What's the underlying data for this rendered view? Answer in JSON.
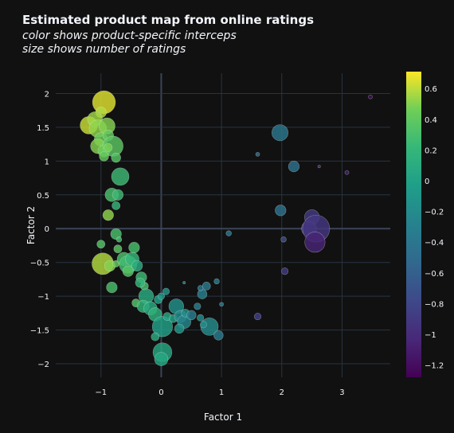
{
  "header": {
    "title": "Estimated product map from online ratings",
    "subtitle_1": "color shows product-specific interceps",
    "subtitle_2": "size shows number of ratings"
  },
  "chart_data": {
    "type": "scatter",
    "title": "Estimated product map from online ratings",
    "subtitle": [
      "color shows product-specific interceps",
      "size shows number of ratings"
    ],
    "xlabel": "Factor 1",
    "ylabel": "Factor 2",
    "xlim": [
      -1.75,
      3.8
    ],
    "ylim": [
      -2.2,
      2.3
    ],
    "xticks": [
      -1,
      0,
      1,
      2,
      3
    ],
    "xtick_labels": [
      "−1",
      "0",
      "1",
      "2",
      "3"
    ],
    "yticks": [
      -2,
      -1.5,
      -1,
      -0.5,
      0,
      0.5,
      1,
      1.5,
      2
    ],
    "ytick_labels": [
      "−2",
      "−1.5",
      "−1",
      "−0.5",
      "0",
      "0.5",
      "1",
      "1.5",
      "2"
    ],
    "grid": true,
    "colorscale": "viridis",
    "colorbar": {
      "range": [
        -1.28,
        0.71
      ],
      "ticks": [
        0.6,
        0.4,
        0.2,
        0,
        -0.2,
        -0.4,
        -0.6,
        -0.8,
        -1,
        -1.2
      ],
      "tick_labels": [
        "0.6",
        "0.4",
        "0.2",
        "0",
        "−0.2",
        "−0.4",
        "−0.6",
        "−0.8",
        "−1",
        "−1.2"
      ]
    },
    "points": [
      {
        "x": -0.95,
        "y": 1.87,
        "c": 0.66,
        "s": 17
      },
      {
        "x": -1.2,
        "y": 1.53,
        "c": 0.62,
        "s": 13
      },
      {
        "x": -1.0,
        "y": 1.72,
        "c": 0.58,
        "s": 8
      },
      {
        "x": -1.1,
        "y": 1.62,
        "c": 0.55,
        "s": 11
      },
      {
        "x": -1.05,
        "y": 1.48,
        "c": 0.52,
        "s": 13
      },
      {
        "x": -0.9,
        "y": 1.52,
        "c": 0.5,
        "s": 12
      },
      {
        "x": -1.0,
        "y": 1.32,
        "c": 0.45,
        "s": 10
      },
      {
        "x": -0.88,
        "y": 1.38,
        "c": 0.42,
        "s": 8
      },
      {
        "x": -1.05,
        "y": 1.22,
        "c": 0.5,
        "s": 11
      },
      {
        "x": -0.95,
        "y": 1.15,
        "c": 0.46,
        "s": 9
      },
      {
        "x": -0.8,
        "y": 1.22,
        "c": 0.38,
        "s": 15
      },
      {
        "x": -0.88,
        "y": 1.2,
        "c": 0.48,
        "s": 6
      },
      {
        "x": -0.95,
        "y": 1.07,
        "c": 0.42,
        "s": 7
      },
      {
        "x": -0.75,
        "y": 1.05,
        "c": 0.36,
        "s": 7
      },
      {
        "x": -0.68,
        "y": 0.77,
        "c": 0.25,
        "s": 13
      },
      {
        "x": -0.82,
        "y": 0.5,
        "c": 0.3,
        "s": 10
      },
      {
        "x": -0.72,
        "y": 0.5,
        "c": 0.25,
        "s": 8
      },
      {
        "x": -0.75,
        "y": 0.34,
        "c": 0.2,
        "s": 6
      },
      {
        "x": -0.88,
        "y": 0.2,
        "c": 0.52,
        "s": 8
      },
      {
        "x": -0.75,
        "y": -0.08,
        "c": 0.3,
        "s": 8
      },
      {
        "x": -0.7,
        "y": -0.16,
        "c": 0.3,
        "s": 4
      },
      {
        "x": -1.0,
        "y": -0.23,
        "c": 0.35,
        "s": 6
      },
      {
        "x": -0.72,
        "y": -0.3,
        "c": 0.38,
        "s": 6
      },
      {
        "x": -0.97,
        "y": -0.52,
        "c": 0.58,
        "s": 16
      },
      {
        "x": -0.85,
        "y": -0.55,
        "c": 0.5,
        "s": 8
      },
      {
        "x": -0.75,
        "y": -0.52,
        "c": 0.42,
        "s": 5
      },
      {
        "x": -0.62,
        "y": -0.45,
        "c": 0.3,
        "s": 10
      },
      {
        "x": -0.55,
        "y": -0.53,
        "c": 0.28,
        "s": 13
      },
      {
        "x": -0.48,
        "y": -0.45,
        "c": 0.2,
        "s": 10
      },
      {
        "x": -0.45,
        "y": -0.28,
        "c": 0.3,
        "s": 8
      },
      {
        "x": -0.4,
        "y": -0.55,
        "c": 0.1,
        "s": 8
      },
      {
        "x": -0.55,
        "y": -0.63,
        "c": 0.35,
        "s": 8
      },
      {
        "x": -0.82,
        "y": -0.87,
        "c": 0.3,
        "s": 8
      },
      {
        "x": -0.33,
        "y": -0.72,
        "c": 0.25,
        "s": 8
      },
      {
        "x": -0.28,
        "y": -0.85,
        "c": 0.3,
        "s": 6
      },
      {
        "x": -0.35,
        "y": -0.8,
        "c": 0.2,
        "s": 7
      },
      {
        "x": -0.25,
        "y": -1.0,
        "c": 0.1,
        "s": 11
      },
      {
        "x": -0.42,
        "y": -1.1,
        "c": 0.35,
        "s": 6
      },
      {
        "x": -0.3,
        "y": -1.15,
        "c": 0.2,
        "s": 9
      },
      {
        "x": -0.18,
        "y": -1.18,
        "c": 0.1,
        "s": 10
      },
      {
        "x": -0.1,
        "y": -1.27,
        "c": 0.15,
        "s": 10
      },
      {
        "x": -0.05,
        "y": -1.05,
        "c": 0.0,
        "s": 6
      },
      {
        "x": 0.0,
        "y": -1.0,
        "c": -0.05,
        "s": 5
      },
      {
        "x": 0.08,
        "y": -0.93,
        "c": -0.1,
        "s": 5
      },
      {
        "x": 0.02,
        "y": -1.45,
        "c": 0.0,
        "s": 15
      },
      {
        "x": 0.1,
        "y": -1.3,
        "c": 0.05,
        "s": 6
      },
      {
        "x": 0.2,
        "y": -1.33,
        "c": 0.0,
        "s": 6
      },
      {
        "x": 0.25,
        "y": -1.15,
        "c": -0.15,
        "s": 11
      },
      {
        "x": 0.32,
        "y": -1.3,
        "c": -0.2,
        "s": 9
      },
      {
        "x": 0.38,
        "y": -1.38,
        "c": -0.25,
        "s": 10
      },
      {
        "x": 0.3,
        "y": -1.48,
        "c": -0.1,
        "s": 7
      },
      {
        "x": 0.4,
        "y": -1.25,
        "c": -0.15,
        "s": 6
      },
      {
        "x": 0.38,
        "y": -0.8,
        "c": -0.25,
        "s": 2
      },
      {
        "x": 0.5,
        "y": -1.28,
        "c": -0.3,
        "s": 7
      },
      {
        "x": 0.6,
        "y": -1.15,
        "c": -0.3,
        "s": 5
      },
      {
        "x": 0.65,
        "y": -1.32,
        "c": -0.2,
        "s": 5
      },
      {
        "x": 0.68,
        "y": -0.97,
        "c": -0.3,
        "s": 7
      },
      {
        "x": 0.75,
        "y": -0.85,
        "c": -0.35,
        "s": 6
      },
      {
        "x": 0.65,
        "y": -0.88,
        "c": -0.4,
        "s": 4
      },
      {
        "x": 0.92,
        "y": -0.78,
        "c": -0.35,
        "s": 4
      },
      {
        "x": 0.8,
        "y": -1.45,
        "c": -0.2,
        "s": 13
      },
      {
        "x": 0.95,
        "y": -1.58,
        "c": -0.35,
        "s": 7
      },
      {
        "x": 0.7,
        "y": -1.42,
        "c": -0.2,
        "s": 5
      },
      {
        "x": 0.02,
        "y": -1.83,
        "c": 0.05,
        "s": 14
      },
      {
        "x": 0.0,
        "y": -1.93,
        "c": 0.05,
        "s": 10
      },
      {
        "x": -0.1,
        "y": -1.6,
        "c": 0.1,
        "s": 6
      },
      {
        "x": 1.0,
        "y": -1.12,
        "c": -0.35,
        "s": 3
      },
      {
        "x": 1.12,
        "y": -0.07,
        "c": -0.4,
        "s": 4
      },
      {
        "x": 1.97,
        "y": 1.42,
        "c": -0.4,
        "s": 12
      },
      {
        "x": 2.2,
        "y": 0.92,
        "c": -0.45,
        "s": 8
      },
      {
        "x": 1.6,
        "y": 1.1,
        "c": -0.45,
        "s": 3
      },
      {
        "x": 1.98,
        "y": 0.27,
        "c": -0.45,
        "s": 8
      },
      {
        "x": 2.03,
        "y": -0.16,
        "c": -0.75,
        "s": 4
      },
      {
        "x": 2.05,
        "y": -0.63,
        "c": -0.9,
        "s": 5
      },
      {
        "x": 1.6,
        "y": -1.3,
        "c": -0.85,
        "s": 5
      },
      {
        "x": 2.5,
        "y": 0.17,
        "c": -0.9,
        "s": 11
      },
      {
        "x": 2.45,
        "y": 0.0,
        "c": -0.95,
        "s": 11
      },
      {
        "x": 2.57,
        "y": 0.0,
        "c": -0.92,
        "s": 20
      },
      {
        "x": 2.55,
        "y": -0.2,
        "c": -1.05,
        "s": 15
      },
      {
        "x": 2.62,
        "y": 0.92,
        "c": -0.95,
        "s": 2
      },
      {
        "x": 3.08,
        "y": 0.83,
        "c": -1.1,
        "s": 3
      },
      {
        "x": 3.47,
        "y": 1.95,
        "c": -1.2,
        "s": 3
      }
    ]
  }
}
